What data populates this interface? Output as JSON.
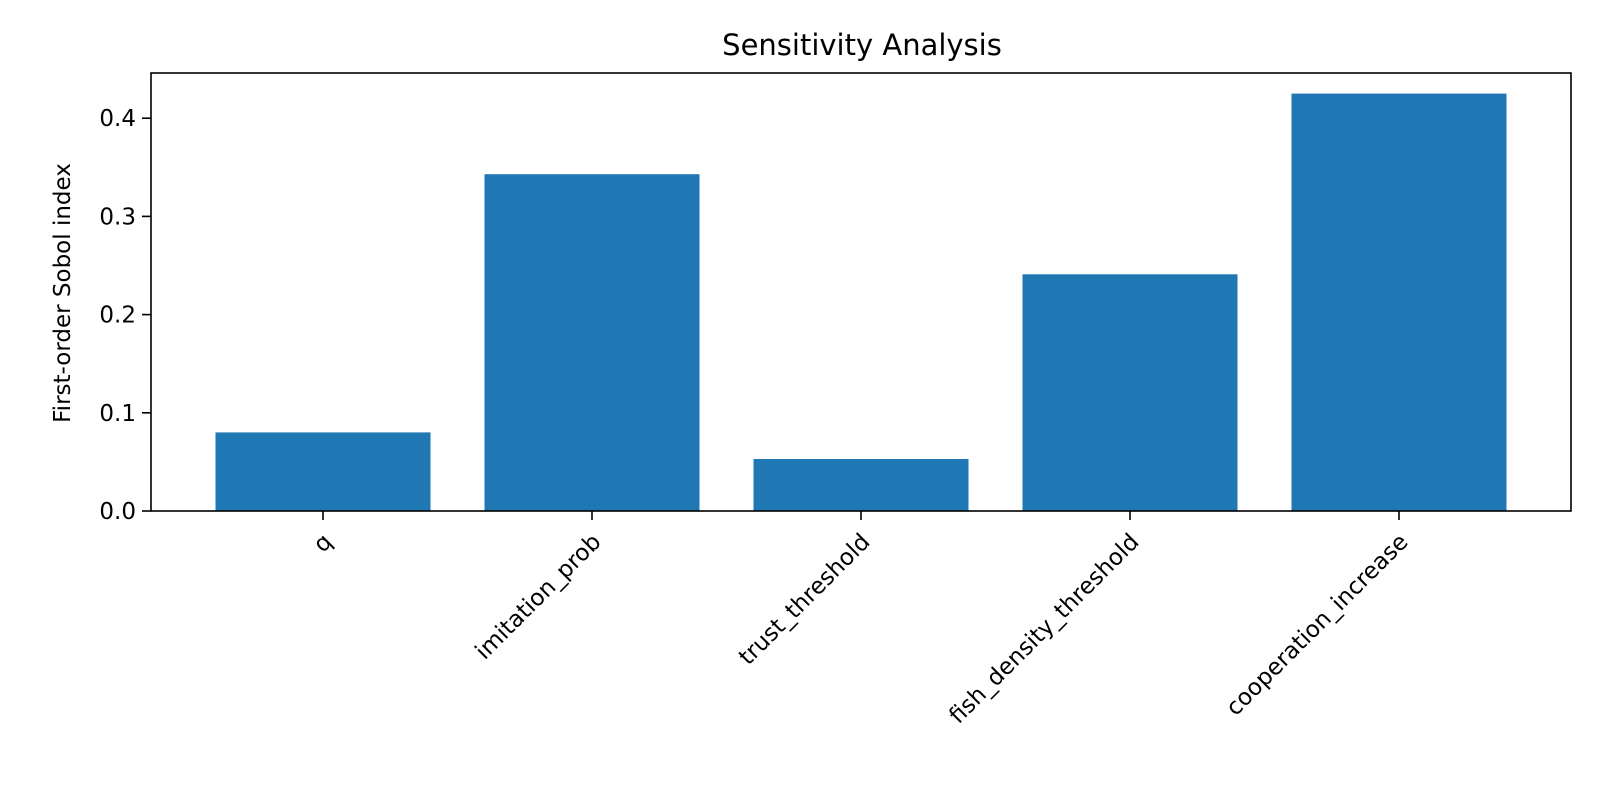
{
  "chart_data": {
    "type": "bar",
    "title": "Sensitivity Analysis",
    "xlabel": "",
    "ylabel": "First-order Sobol index",
    "categories": [
      "q",
      "imitation_prob",
      "trust_threshold",
      "fish_density_threshold",
      "cooperation_increase"
    ],
    "values": [
      0.08,
      0.343,
      0.053,
      0.241,
      0.425
    ],
    "ylim": [
      0,
      0.446
    ],
    "yticks": [
      0.0,
      0.1,
      0.2,
      0.3,
      0.4
    ],
    "ytick_labels": [
      "0.0",
      "0.1",
      "0.2",
      "0.3",
      "0.4"
    ],
    "grid": false,
    "legend": "none",
    "bar_color": "#1f77b4"
  }
}
